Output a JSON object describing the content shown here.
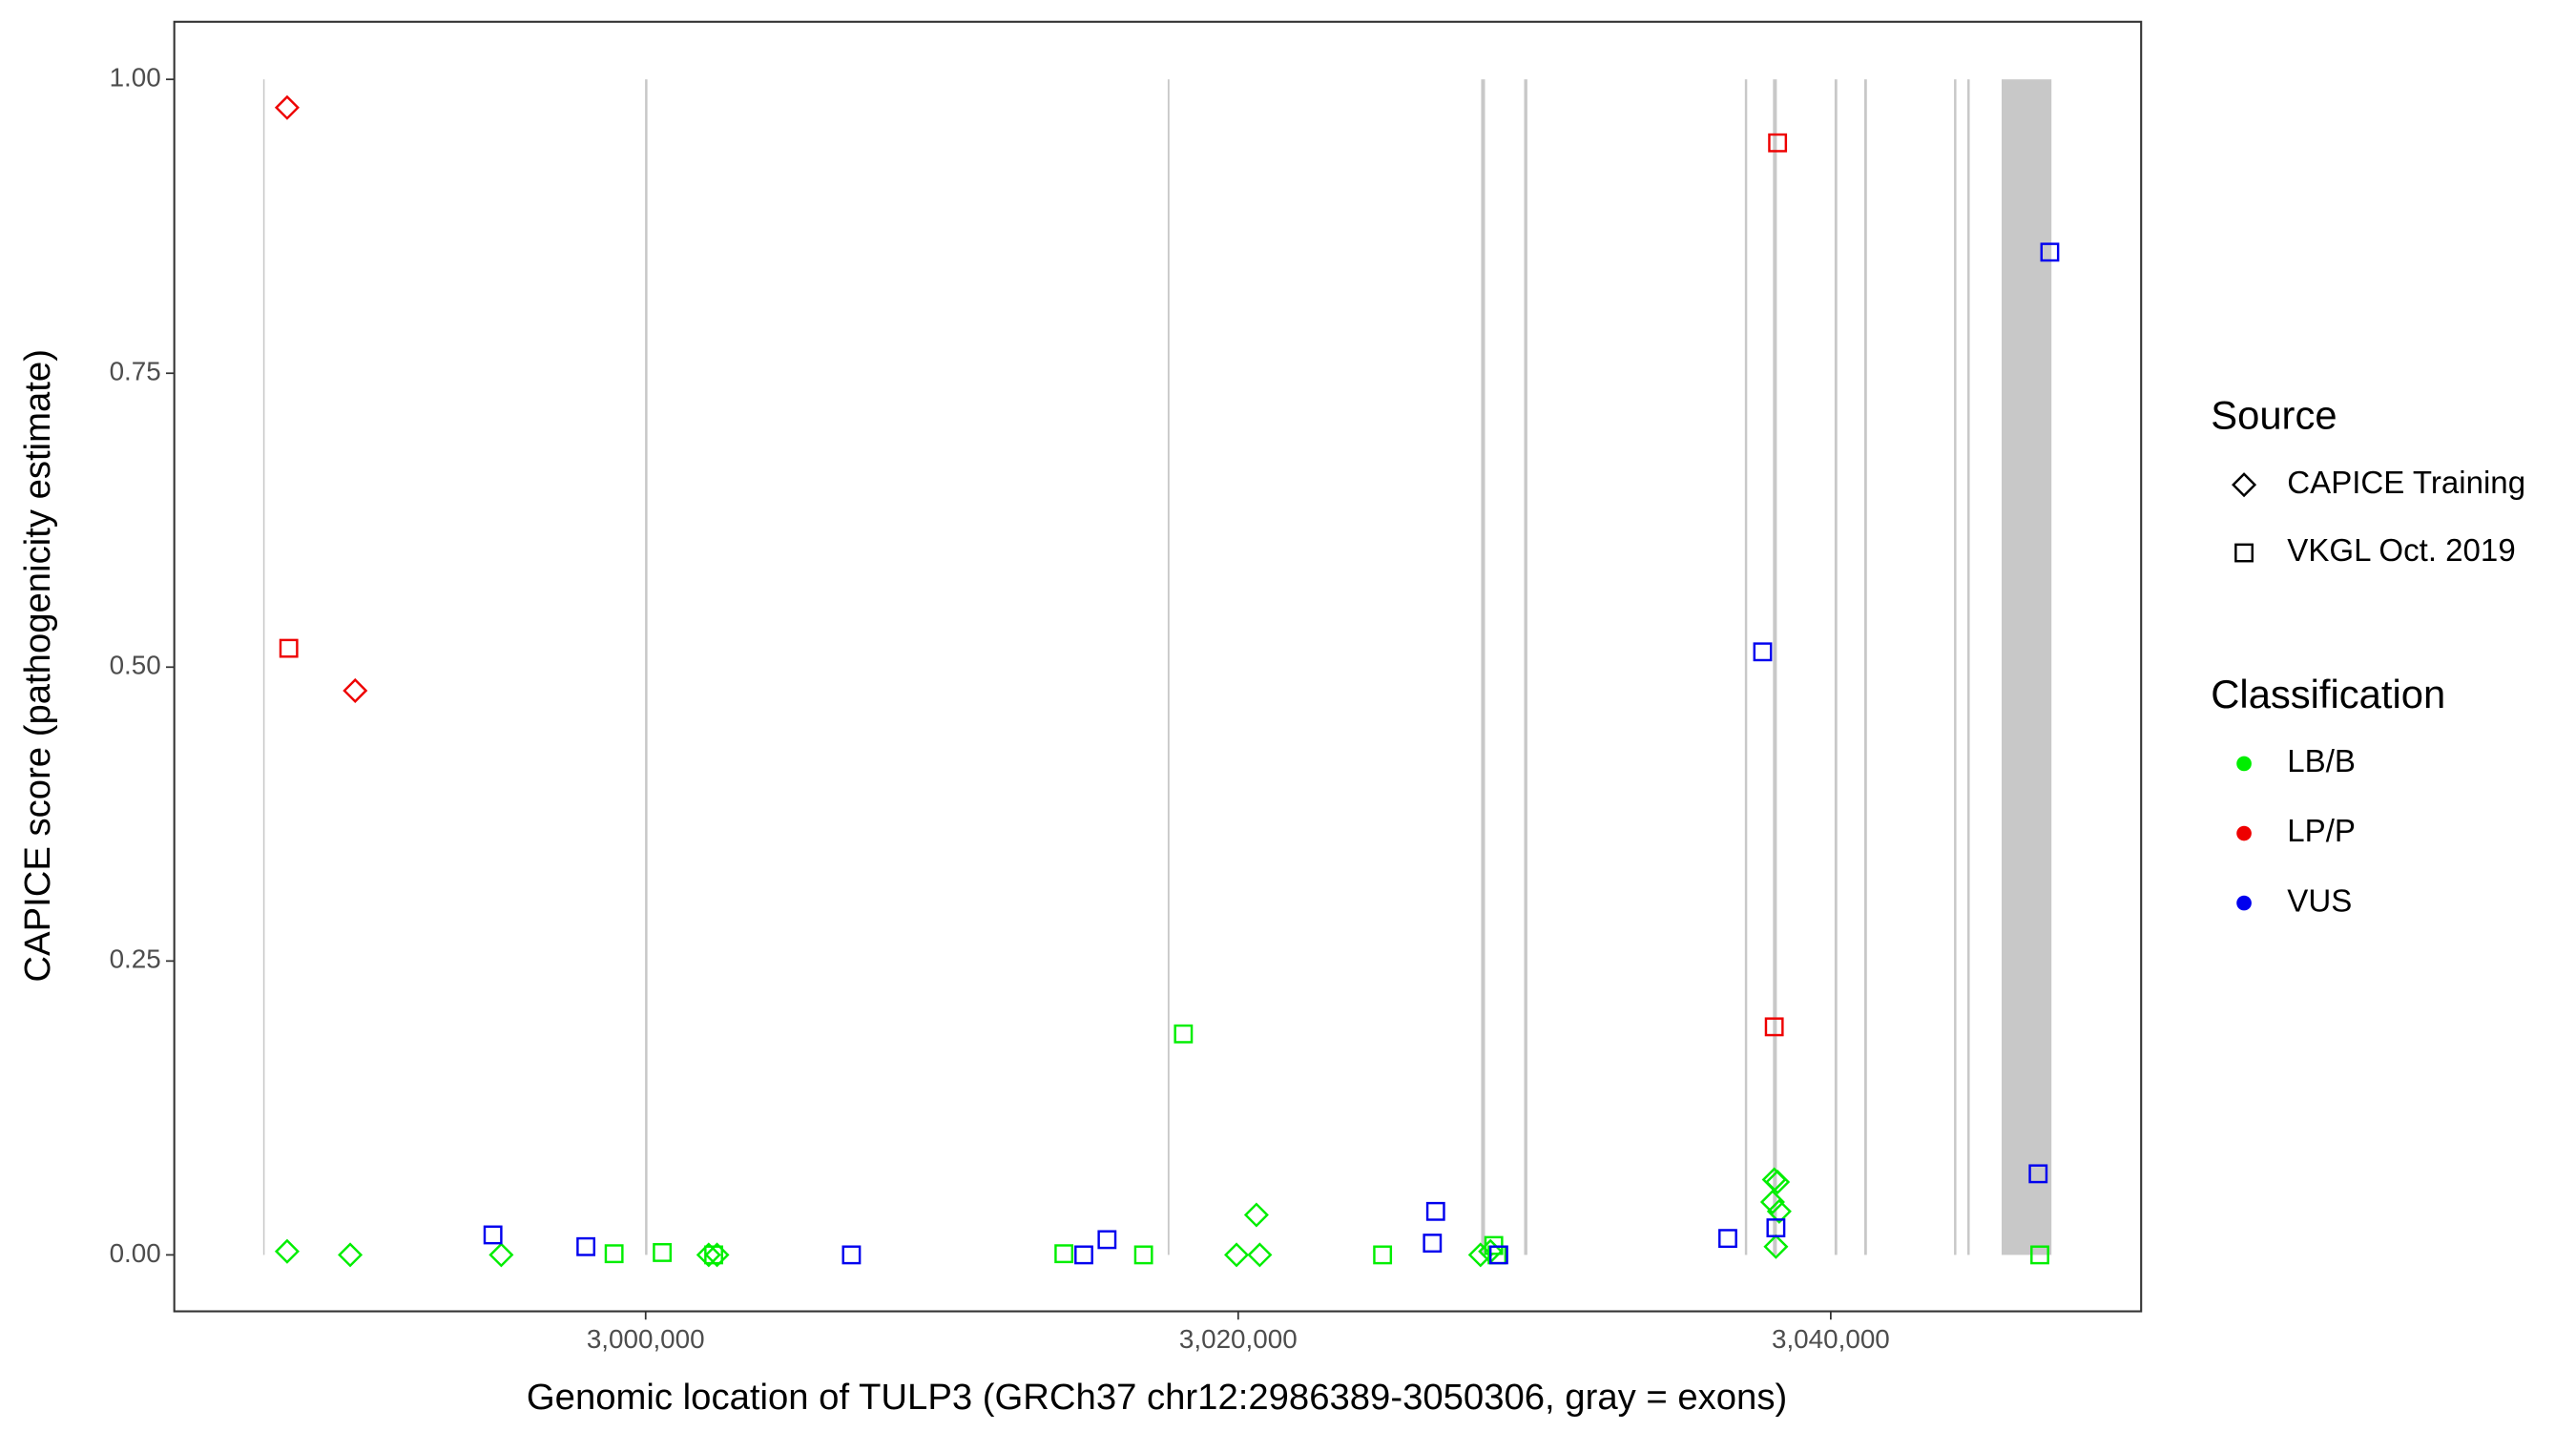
{
  "chart_data": {
    "type": "scatter",
    "x_label": "Genomic location of TULP3 (GRCh37 chr12:2986389-3050306, gray = exons)",
    "y_label": "CAPICE score (pathogenicity estimate)",
    "xlim": [
      2984090,
      3050476
    ],
    "ylim": [
      -0.048,
      1.049
    ],
    "xticks": [
      {
        "value": 3000000,
        "label": "3,000,000"
      },
      {
        "value": 3020000,
        "label": "3,020,000"
      },
      {
        "value": 3040000,
        "label": "3,040,000"
      }
    ],
    "yticks": [
      {
        "value": 0,
        "label": "0.00"
      },
      {
        "value": 0.25,
        "label": "0.25"
      },
      {
        "value": 0.5,
        "label": "0.50"
      },
      {
        "value": 0.75,
        "label": "0.75"
      },
      {
        "value": 1,
        "label": "1.00"
      }
    ],
    "grid": false,
    "exon_color": "#c8c8c8",
    "exons": [
      [
        2987090,
        2987140
      ],
      [
        2999980,
        3000060
      ],
      [
        3017620,
        3017680
      ],
      [
        3028200,
        3028330
      ],
      [
        3029650,
        3029760
      ],
      [
        3037100,
        3037180
      ],
      [
        3038050,
        3038180
      ],
      [
        3040130,
        3040220
      ],
      [
        3041130,
        3041220
      ],
      [
        3044160,
        3044240
      ],
      [
        3044610,
        3044690
      ],
      [
        3045768,
        3047449
      ]
    ],
    "source_title": "Source",
    "sources": [
      {
        "name": "CAPICE Training",
        "shape": "diamond"
      },
      {
        "name": "VKGL Oct. 2019",
        "shape": "square"
      }
    ],
    "classification_title": "Classification",
    "classifications": [
      {
        "name": "LB/B",
        "color": "#00ee00"
      },
      {
        "name": "LP/P",
        "color": "#ee0000"
      },
      {
        "name": "VUS",
        "color": "#0000ee"
      }
    ],
    "series": [
      {
        "source": "CAPICE Training",
        "classification": "LB/B",
        "x": [
          2987899,
          2990028,
          2995126,
          3002128,
          3002409,
          3019943,
          3020615,
          3020727,
          3028178,
          3028514,
          3038093,
          3038205,
          3038037,
          3038261,
          3038149
        ],
        "y": [
          0.003,
          0,
          0,
          0,
          0,
          0,
          0.034,
          0,
          0,
          0.003,
          0.064,
          0.062,
          0.045,
          0.037,
          0.007
        ]
      },
      {
        "source": "CAPICE Training",
        "classification": "LP/P",
        "x": [
          2987899,
          2990196
        ],
        "y": [
          0.976,
          0.48
        ]
      },
      {
        "source": "VKGL Oct. 2019",
        "classification": "LB/B",
        "x": [
          2998935,
          3000560,
          3002297,
          3014117,
          3016806,
          3018150,
          3024873,
          3028626,
          3028738,
          3047056
        ],
        "y": [
          0.001,
          0.002,
          0,
          0.001,
          0,
          0.188,
          0,
          0.008,
          0,
          0
        ]
      },
      {
        "source": "VKGL Oct. 2019",
        "classification": "LP/P",
        "x": [
          2987955,
          3038205,
          3038093
        ],
        "y": [
          0.516,
          0.946,
          0.194
        ]
      },
      {
        "source": "VKGL Oct. 2019",
        "classification": "VUS",
        "x": [
          2994846,
          2997983,
          3006946,
          3014789,
          3015573,
          3026553,
          3026665,
          3028794,
          3036525,
          3037701,
          3038149,
          3047000,
          3047393
        ],
        "y": [
          0.017,
          0.007,
          0,
          0,
          0.013,
          0.01,
          0.037,
          0,
          0.014,
          0.513,
          0.023,
          0.069,
          0.853
        ]
      }
    ]
  }
}
